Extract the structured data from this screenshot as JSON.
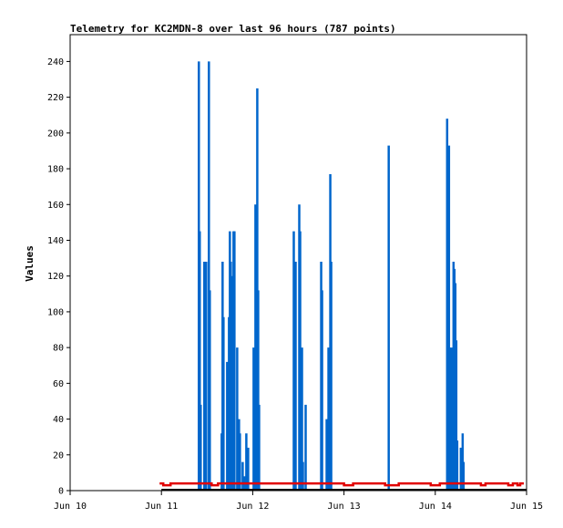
{
  "chart_data": {
    "type": "line",
    "title": "Telemetry for KC2MDN-8 over last 96 hours (787 points)",
    "xlabel": "",
    "ylabel": "Values",
    "x_ticks": [
      "Jun 10",
      "Jun 11",
      "Jun 12",
      "Jun 13",
      "Jun 14",
      "Jun 15"
    ],
    "xlim": [
      0,
      5
    ],
    "ylim": [
      0,
      255
    ],
    "y_ticks": [
      0,
      20,
      40,
      60,
      80,
      100,
      120,
      140,
      160,
      180,
      200,
      220,
      240
    ],
    "grid": false,
    "colors": {
      "spikes": "#0066cc",
      "baseline": "#e00000",
      "zero": "#000000"
    },
    "series": [
      {
        "values": [
          [
            1.41,
            240
          ],
          [
            1.42,
            145
          ],
          [
            1.43,
            48
          ],
          [
            1.47,
            128
          ],
          [
            1.49,
            128
          ],
          [
            1.52,
            240
          ],
          [
            1.53,
            112
          ],
          [
            1.66,
            32
          ],
          [
            1.67,
            128
          ],
          [
            1.68,
            97
          ],
          [
            1.72,
            72
          ],
          [
            1.74,
            97
          ],
          [
            1.75,
            145
          ],
          [
            1.76,
            128
          ],
          [
            1.77,
            120
          ],
          [
            1.79,
            145
          ],
          [
            1.8,
            145
          ],
          [
            1.83,
            80
          ],
          [
            1.85,
            40
          ],
          [
            1.86,
            32
          ],
          [
            1.89,
            16
          ],
          [
            1.91,
            8
          ],
          [
            1.93,
            32
          ],
          [
            1.95,
            24
          ],
          [
            2.01,
            80
          ],
          [
            2.03,
            160
          ],
          [
            2.05,
            225
          ],
          [
            2.06,
            112
          ],
          [
            2.07,
            48
          ],
          [
            2.45,
            145
          ],
          [
            2.47,
            128
          ],
          [
            2.51,
            160
          ],
          [
            2.52,
            145
          ],
          [
            2.54,
            80
          ],
          [
            2.55,
            16
          ],
          [
            2.58,
            48
          ],
          [
            2.75,
            128
          ],
          [
            2.76,
            112
          ],
          [
            2.81,
            40
          ],
          [
            2.83,
            80
          ],
          [
            2.85,
            177
          ],
          [
            2.86,
            128
          ],
          [
            3.49,
            193
          ],
          [
            4.13,
            208
          ],
          [
            4.15,
            193
          ],
          [
            4.16,
            80
          ],
          [
            4.18,
            80
          ],
          [
            4.2,
            128
          ],
          [
            4.21,
            124
          ],
          [
            4.22,
            116
          ],
          [
            4.23,
            84
          ],
          [
            4.24,
            28
          ],
          [
            4.28,
            24
          ],
          [
            4.3,
            32
          ],
          [
            4.31,
            16
          ]
        ]
      },
      {
        "values": [
          [
            0.98,
            4
          ],
          [
            1.02,
            3
          ],
          [
            1.1,
            4
          ],
          [
            1.41,
            4
          ],
          [
            1.55,
            3
          ],
          [
            1.62,
            4
          ],
          [
            2.1,
            4
          ],
          [
            2.9,
            4
          ],
          [
            3.0,
            3
          ],
          [
            3.1,
            4
          ],
          [
            3.3,
            4
          ],
          [
            3.45,
            3
          ],
          [
            3.6,
            4
          ],
          [
            3.8,
            4
          ],
          [
            3.95,
            3
          ],
          [
            4.05,
            4
          ],
          [
            4.4,
            4
          ],
          [
            4.5,
            3
          ],
          [
            4.55,
            4
          ],
          [
            4.75,
            4
          ],
          [
            4.8,
            3
          ],
          [
            4.85,
            4
          ],
          [
            4.9,
            3
          ],
          [
            4.93,
            4
          ],
          [
            4.97,
            4
          ]
        ]
      },
      {
        "values": [
          [
            1.0,
            0
          ],
          [
            5.0,
            0
          ]
        ]
      }
    ]
  }
}
